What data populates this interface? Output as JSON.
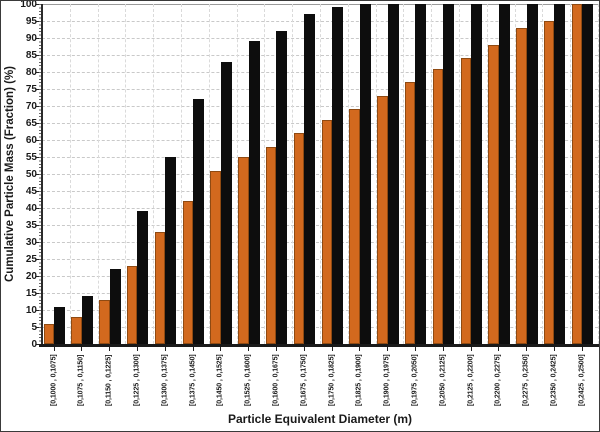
{
  "window": {
    "kind": "chart-panel",
    "background": "#FFFFFF",
    "border_color": "#3A3A3A"
  },
  "chart_data": {
    "type": "bar",
    "title": "",
    "xlabel": "Particle Equivalent Diameter (m)",
    "ylabel": "Cumulative Particle Mass (Fraction) (%)",
    "ylim": [
      0,
      100
    ],
    "y_tick_step": 5,
    "y_ticks": [
      0,
      5,
      10,
      15,
      20,
      25,
      30,
      35,
      40,
      45,
      50,
      55,
      60,
      65,
      70,
      75,
      80,
      85,
      90,
      95,
      100
    ],
    "grid": true,
    "grid_style": "dashed",
    "legend_position": "none",
    "categories": [
      "[0,1000 , 0,1075]",
      "[0,1075 , 0,1150]",
      "[0,1150 , 0,1225]",
      "[0,1225 , 0,1300]",
      "[0,1300 , 0,1375]",
      "[0,1375 , 0,1450]",
      "[0,1450 , 0,1525]",
      "[0,1525 , 0,1600]",
      "[0,1600 , 0,1675]",
      "[0,1675 , 0,1750]",
      "[0,1750 , 0,1825]",
      "[0,1825 , 0,1900]",
      "[0,1900 , 0,1975]",
      "[0,1975 , 0,2050]",
      "[0,2050 , 0,2125]",
      "[0,2125 , 0,2200]",
      "[0,2200 , 0,2275]",
      "[0,2275 , 0,2350]",
      "[0,2350 , 0,2425]",
      "[0,2425 , 0,2500]"
    ],
    "series": [
      {
        "name": "orange-cumulative-series",
        "color": "#D2691E",
        "border_color": "#8F4A12",
        "values": [
          6,
          8,
          13,
          23,
          33,
          42,
          51,
          55,
          58,
          62,
          66,
          69,
          73,
          77,
          81,
          84,
          88,
          93,
          95,
          100
        ]
      },
      {
        "name": "black-cumulative-series",
        "color": "#0D0D0D",
        "border_color": "#0D0D0D",
        "values": [
          11,
          14,
          22,
          39,
          55,
          72,
          83,
          89,
          92,
          97,
          99,
          100,
          100,
          100,
          100,
          100,
          100,
          100,
          100,
          100
        ]
      }
    ]
  },
  "colors": {
    "gridline": "#C9C9C9",
    "axis": "#2B2B2B",
    "text": "#1A1A1A"
  }
}
